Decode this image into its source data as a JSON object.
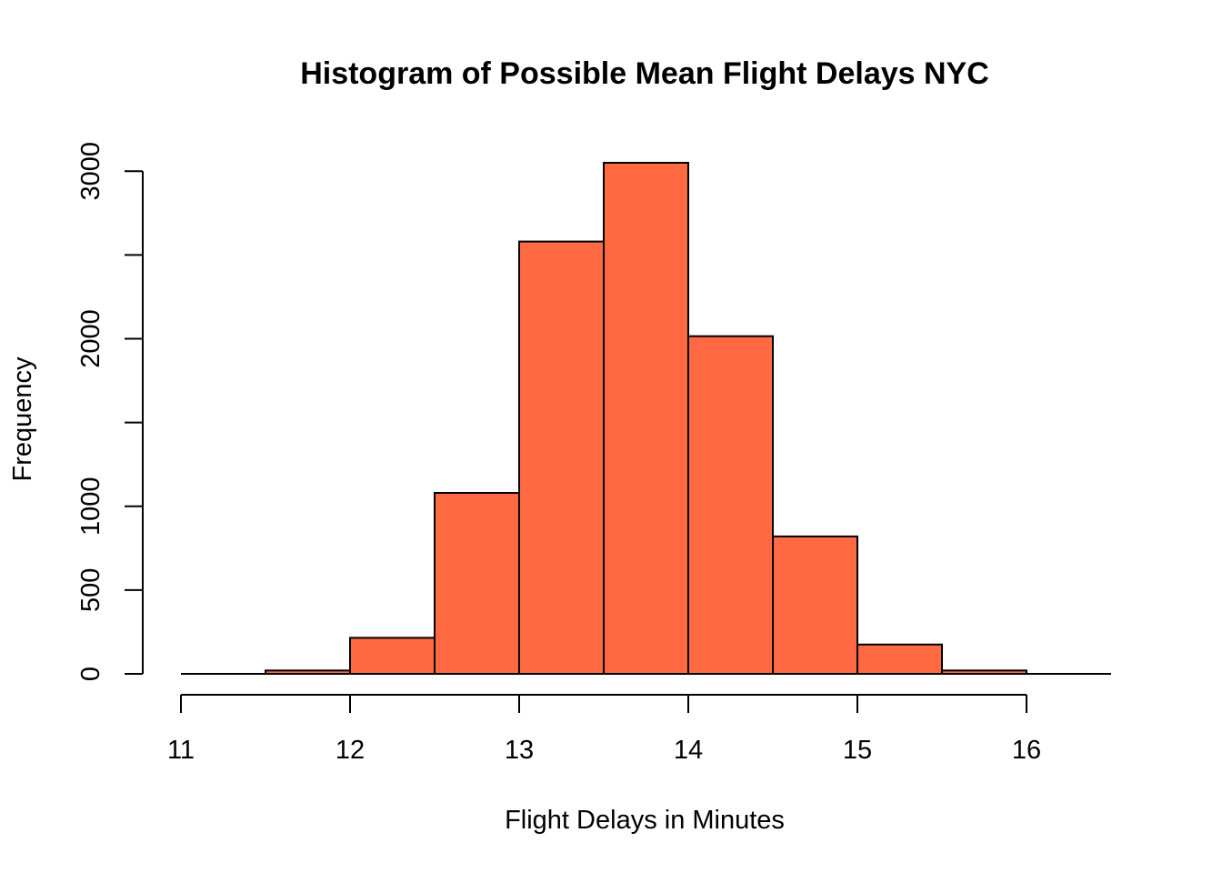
{
  "chart_data": {
    "type": "bar",
    "title": "Histogram of Possible Mean Flight Delays NYC",
    "xlabel": "Flight Delays in Minutes",
    "ylabel": "Frequency",
    "bin_edges": [
      11,
      11.5,
      12,
      12.5,
      13,
      13.5,
      14,
      14.5,
      15,
      15.5,
      16,
      16.5
    ],
    "counts": [
      0,
      20,
      215,
      1080,
      2580,
      3050,
      2015,
      820,
      175,
      20,
      0
    ],
    "xlim": [
      11,
      16.5
    ],
    "ylim": [
      0,
      3050
    ],
    "x_ticks": [
      11,
      12,
      13,
      14,
      15,
      16
    ],
    "x_tick_labels": [
      "11",
      "12",
      "13",
      "14",
      "15",
      "16"
    ],
    "y_ticks": [
      0,
      500,
      1000,
      1500,
      2000,
      2500,
      3000
    ],
    "y_tick_labels": [
      "0",
      "500",
      "1000",
      "",
      "2000",
      "",
      "3000"
    ],
    "bar_color": "#FF6A43",
    "grid": false
  }
}
